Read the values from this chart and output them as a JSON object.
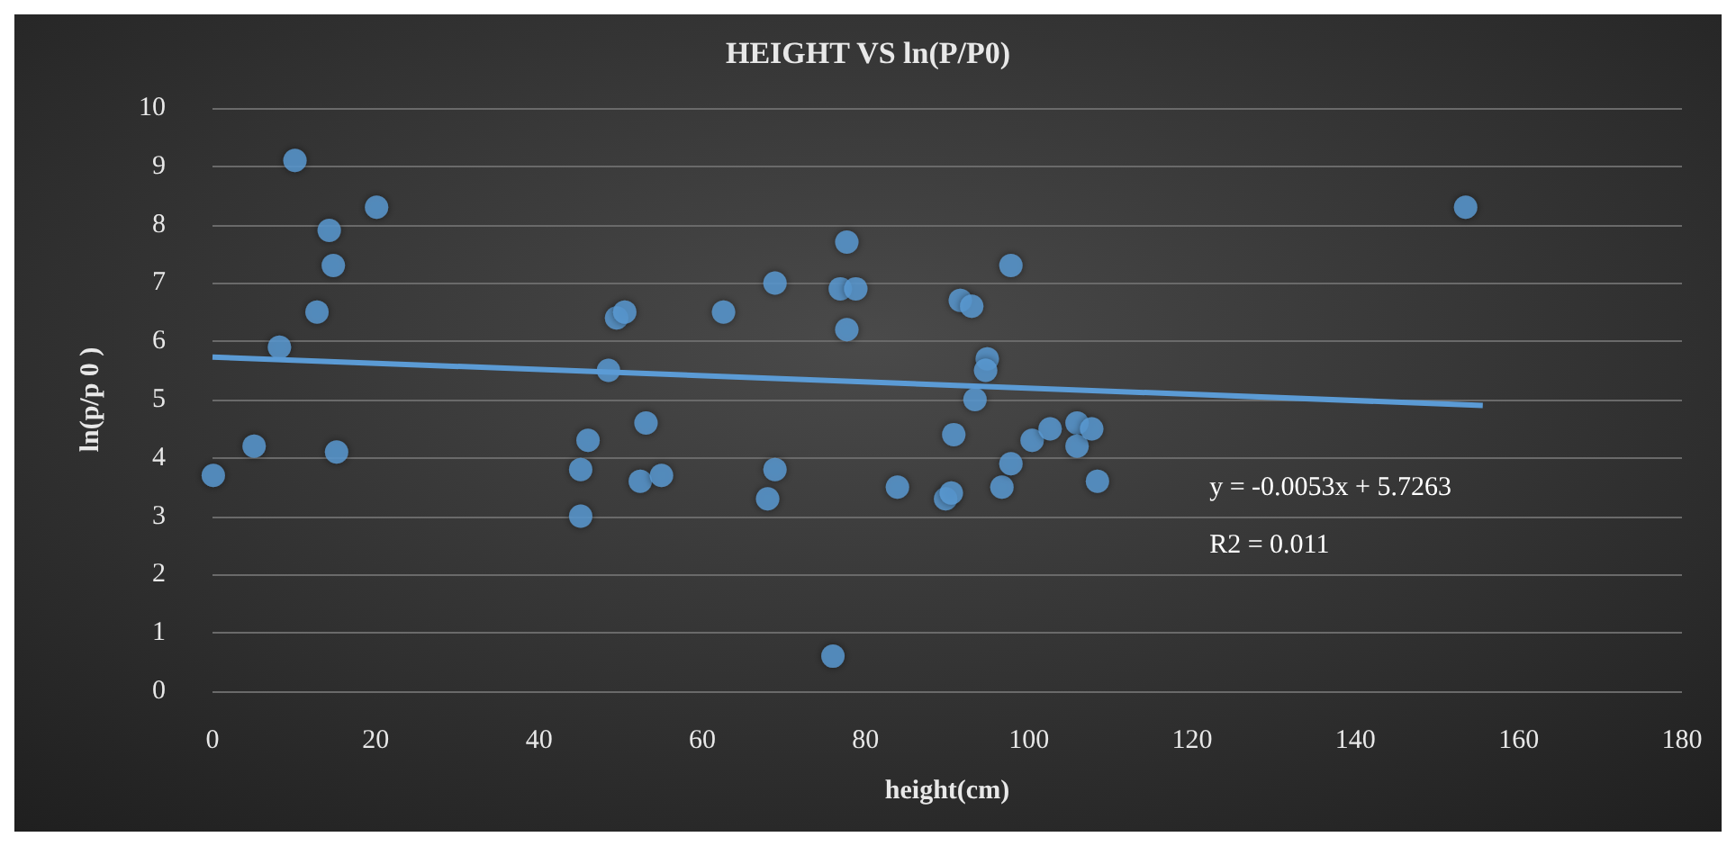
{
  "chart_data": {
    "type": "scatter",
    "title": "HEIGHT VS ln(P/P0)",
    "xlabel": "height(cm)",
    "ylabel": "ln(p/p 0 )",
    "xlim": [
      0,
      180
    ],
    "xticks": [
      0,
      20,
      40,
      60,
      80,
      100,
      120,
      140,
      160,
      180
    ],
    "ylim": [
      0,
      10
    ],
    "yticks": [
      0,
      1,
      2,
      3,
      4,
      5,
      6,
      7,
      8,
      9,
      10
    ],
    "grid": "y",
    "marker": "circle",
    "series": [
      {
        "color": "#5b9bd5",
        "x": [
          0.1,
          5.1,
          10.1,
          8.2,
          12.8,
          14.3,
          14.8,
          15.2,
          20.1,
          45.1,
          45.1,
          46.0,
          48.5,
          49.5,
          50.5,
          53.1,
          52.4,
          55.0,
          62.6,
          68.9,
          68.9,
          68.0,
          77.7,
          76.9,
          78.8,
          77.7,
          76.0,
          83.9,
          89.8,
          90.5,
          90.8,
          91.6,
          93.0,
          97.8,
          94.9,
          94.7,
          93.4,
          96.7,
          97.8,
          100.4,
          102.6,
          105.9,
          105.9,
          107.7,
          108.4,
          153.5
        ],
        "values": [
          3.7,
          4.2,
          9.1,
          5.9,
          6.5,
          7.9,
          7.3,
          4.1,
          8.3,
          3.0,
          3.8,
          4.3,
          5.5,
          6.4,
          6.5,
          4.6,
          3.6,
          3.7,
          6.5,
          7.0,
          3.8,
          3.3,
          7.7,
          6.9,
          6.9,
          6.2,
          0.6,
          3.5,
          3.3,
          3.4,
          4.4,
          6.7,
          6.6,
          7.3,
          5.7,
          5.5,
          5.0,
          3.5,
          3.9,
          4.3,
          4.5,
          4.6,
          4.2,
          4.5,
          3.6,
          8.3
        ]
      },
      {
        "type": "line",
        "marker": "none",
        "color": "#5b9bd5",
        "x": [
          0,
          155.6
        ],
        "values": [
          5.73,
          4.9
        ]
      }
    ],
    "annotations": [
      "y = -0.0053x + 5.7263",
      "R2 = 0.011"
    ]
  }
}
